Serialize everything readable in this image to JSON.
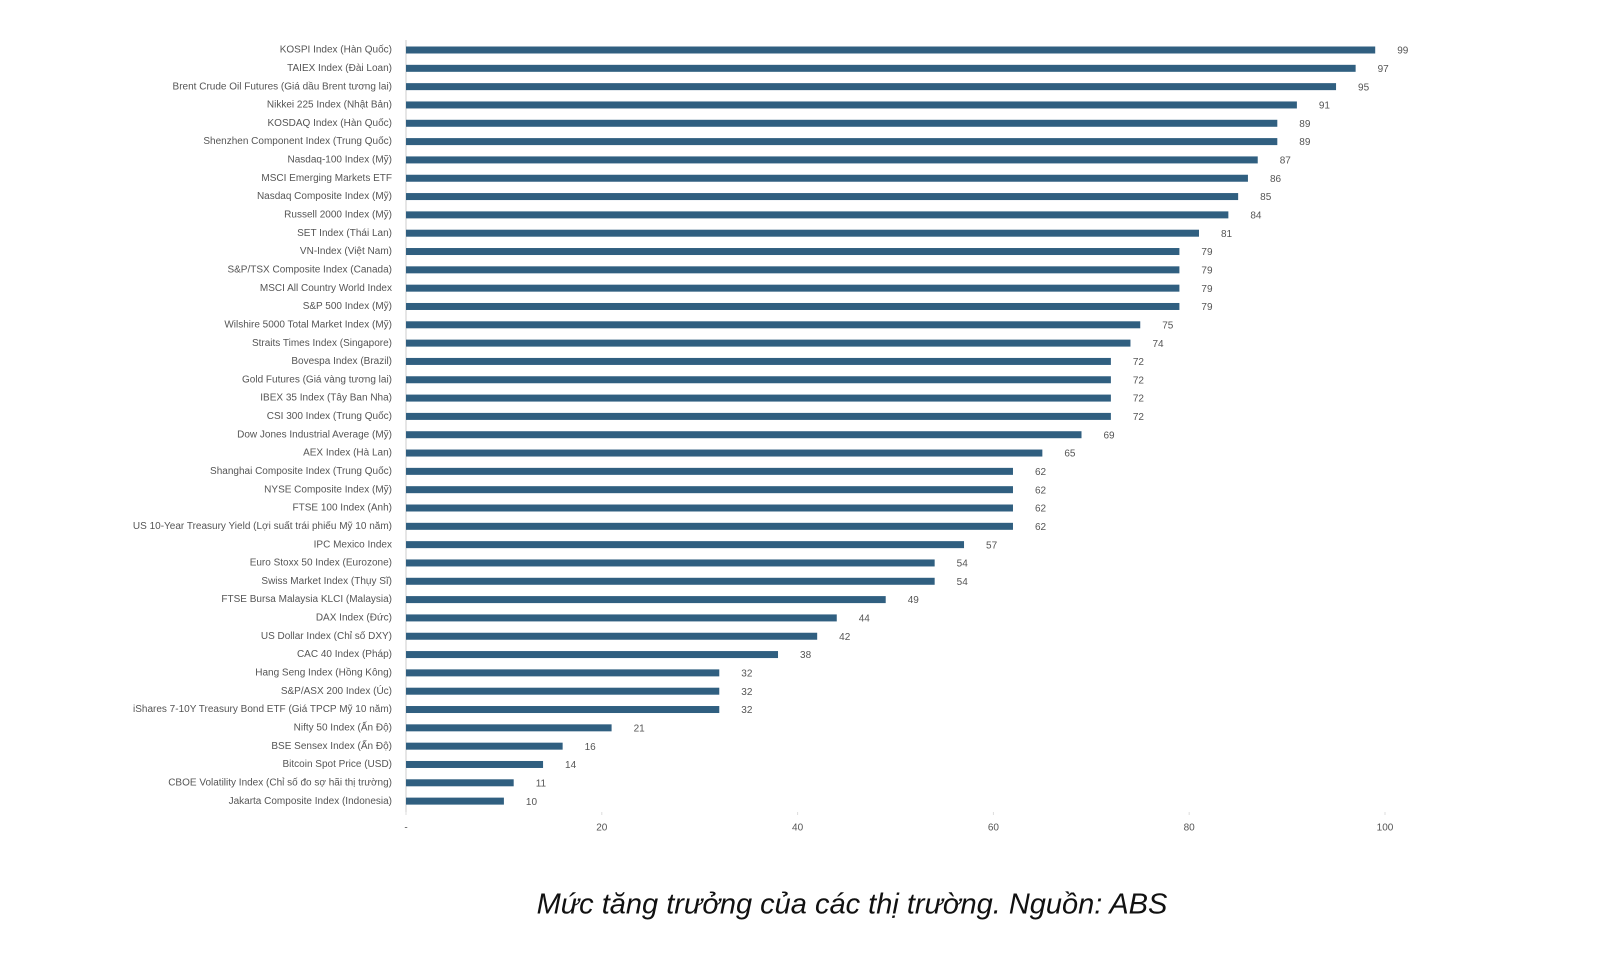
{
  "chart_data": {
    "type": "bar",
    "caption": "Mức tăng trưởng của các thị trường. Nguồn: ABS",
    "categories": [
      "KOSPI Index (Hàn Quốc)",
      "TAIEX Index (Đài Loan)",
      "Brent Crude Oil Futures (Giá dầu Brent tương lai)",
      "Nikkei 225 Index (Nhật Bản)",
      "KOSDAQ Index (Hàn Quốc)",
      "Shenzhen Component Index (Trung Quốc)",
      "Nasdaq-100 Index (Mỹ)",
      "MSCI Emerging Markets ETF",
      "Nasdaq Composite Index (Mỹ)",
      "Russell 2000 Index (Mỹ)",
      "SET Index (Thái Lan)",
      "VN-Index (Việt Nam)",
      "S&P/TSX Composite Index (Canada)",
      "MSCI All Country World Index",
      "S&P 500 Index (Mỹ)",
      "Wilshire 5000 Total Market Index (Mỹ)",
      "Straits Times Index (Singapore)",
      "Bovespa Index (Brazil)",
      "Gold Futures (Giá vàng tương lai)",
      "IBEX 35 Index (Tây Ban Nha)",
      "CSI 300 Index (Trung Quốc)",
      "Dow Jones Industrial Average (Mỹ)",
      "AEX Index (Hà Lan)",
      "Shanghai Composite Index (Trung Quốc)",
      "NYSE Composite Index (Mỹ)",
      "FTSE 100 Index (Anh)",
      "US 10-Year Treasury Yield (Lợi suất trái phiếu Mỹ 10 năm)",
      "IPC Mexico Index",
      "Euro Stoxx 50 Index (Eurozone)",
      "Swiss Market Index (Thụy Sĩ)",
      "FTSE Bursa Malaysia KLCI (Malaysia)",
      "DAX Index (Đức)",
      "US Dollar Index (Chỉ số DXY)",
      "CAC 40 Index (Pháp)",
      "Hang Seng Index (Hồng Kông)",
      "S&P/ASX 200 Index (Úc)",
      "iShares 7-10Y Treasury Bond ETF (Giá TPCP Mỹ 10 năm)",
      "Nifty 50 Index (Ấn Độ)",
      "BSE Sensex Index (Ấn Độ)",
      "Bitcoin Spot Price (USD)",
      "CBOE Volatility Index (Chỉ số đo sợ hãi thị trường)",
      "Jakarta Composite Index (Indonesia)"
    ],
    "values": [
      99,
      97,
      95,
      91,
      89,
      89,
      87,
      86,
      85,
      84,
      81,
      79,
      79,
      79,
      79,
      75,
      74,
      72,
      72,
      72,
      72,
      69,
      65,
      62,
      62,
      62,
      62,
      57,
      54,
      54,
      49,
      44,
      42,
      38,
      32,
      32,
      32,
      21,
      16,
      14,
      11,
      10
    ],
    "color": "#305f80",
    "xlim": [
      0,
      100
    ],
    "xticks": [
      {
        "value": 0,
        "label": "-"
      },
      20,
      40,
      60,
      80,
      100
    ]
  }
}
